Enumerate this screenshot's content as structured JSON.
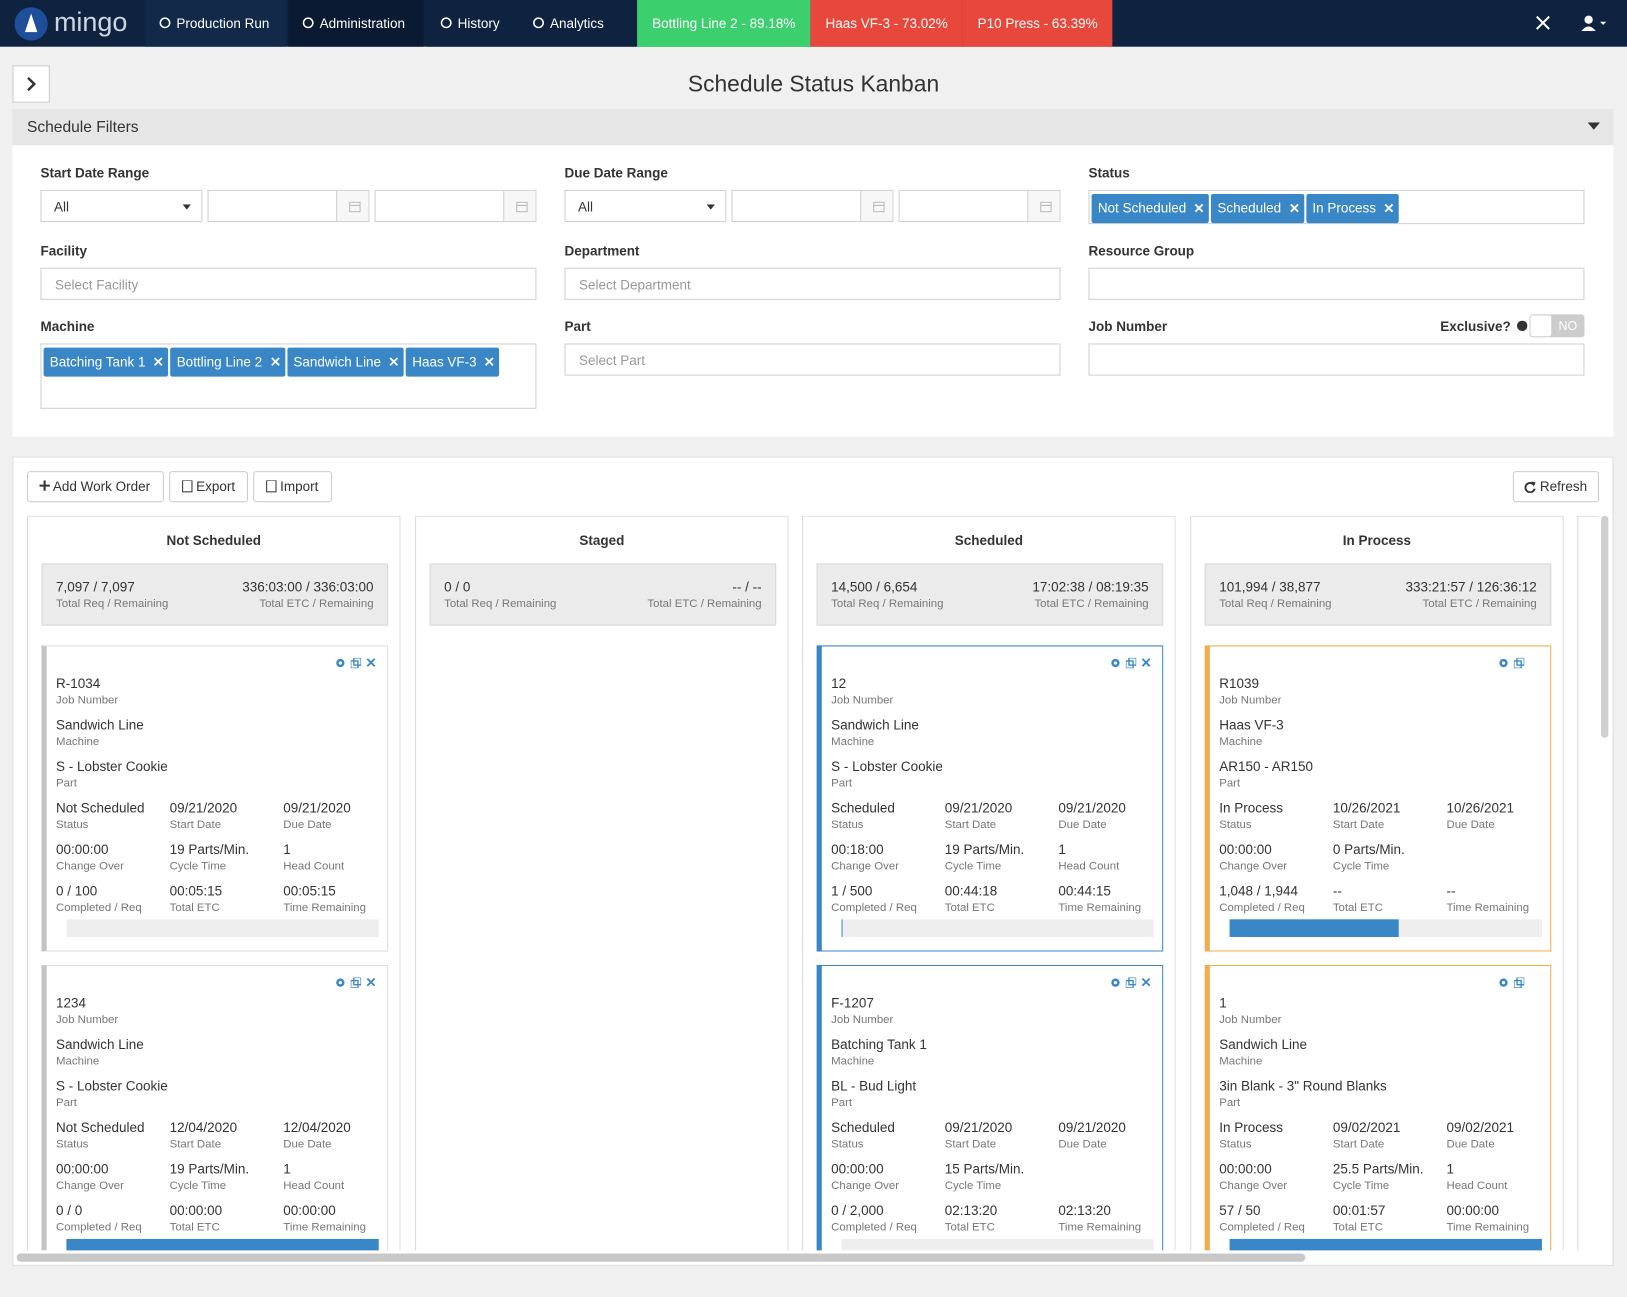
{
  "nav": {
    "brand": "mingo",
    "items": [
      "Production Run",
      "Administration",
      "History",
      "Analytics"
    ],
    "machines": [
      {
        "label": "Bottling Line 2 - 89.18%",
        "color": "#3ccf6e"
      },
      {
        "label": "Haas VF-3 - 73.02%",
        "color": "#e8483b"
      },
      {
        "label": "P10 Press - 63.39%",
        "color": "#e8483b"
      }
    ]
  },
  "title": "Schedule Status Kanban",
  "filters": {
    "heading": "Schedule Filters",
    "fields": [
      {
        "label": "Start Date Range",
        "kind": "daterange",
        "value": "All"
      },
      {
        "label": "Due Date Range",
        "kind": "daterange",
        "value": "All"
      },
      {
        "label": "Status",
        "kind": "tags",
        "tags": [
          "Not Scheduled",
          "Scheduled",
          "In Process"
        ]
      },
      {
        "label": "Facility",
        "kind": "input",
        "placeholder": "Select Facility"
      },
      {
        "label": "Department",
        "kind": "input",
        "placeholder": "Select Department"
      },
      {
        "label": "Resource Group",
        "kind": "input"
      },
      {
        "label": "Machine",
        "kind": "tags",
        "tags": [
          "Batching Tank 1",
          "Bottling Line 2",
          "Sandwich Line",
          "Haas VF-3"
        ]
      },
      {
        "label": "Part",
        "kind": "input",
        "placeholder": "Select Part"
      },
      {
        "label": "Job Number",
        "kind": "input",
        "extra_label": "Exclusive?",
        "toggle": "NO"
      }
    ]
  },
  "toolbar": {
    "buttons": [
      "Add Work Order",
      "Export",
      "Import"
    ],
    "refresh": "Refresh"
  },
  "summary_labels": [
    "Total Req / Remaining",
    "Total ETC / Remaining"
  ],
  "field_labels": [
    "Job Number",
    "Machine",
    "Part",
    "Status",
    "Start Date",
    "Due Date",
    "Change Over",
    "Cycle Time",
    "Head Count",
    "Completed / Req",
    "Total ETC",
    "Time Remaining"
  ],
  "columns": [
    {
      "title": "Not Scheduled",
      "req": "7,097 / 7,097",
      "etc": "336:03:00 / 336:03:00",
      "cards": [
        {
          "accent": "#c4c4c4",
          "removable": true,
          "job": "R-1034",
          "machine": "Sandwich Line",
          "part": "S - Lobster Cookie",
          "grid": [
            [
              "Not Scheduled",
              "09/21/2020",
              "09/21/2020"
            ],
            [
              "00:00:00",
              "19 Parts/Min.",
              "1"
            ],
            [
              "0 / 100",
              "00:05:15",
              "00:05:15"
            ]
          ],
          "progress": 0
        },
        {
          "accent": "#c4c4c4",
          "removable": true,
          "job": "1234",
          "machine": "Sandwich Line",
          "part": "S - Lobster Cookie",
          "grid": [
            [
              "Not Scheduled",
              "12/04/2020",
              "12/04/2020"
            ],
            [
              "00:00:00",
              "19 Parts/Min.",
              "1"
            ],
            [
              "0 / 0",
              "00:00:00",
              "00:00:00"
            ]
          ],
          "progress": 100
        }
      ]
    },
    {
      "title": "Staged",
      "req": "0 / 0",
      "etc": "-- / --",
      "cards": []
    },
    {
      "title": "Scheduled",
      "req": "14,500 / 6,654",
      "etc": "17:02:38 / 08:19:35",
      "cards": [
        {
          "accent": "#3a87c8",
          "removable": true,
          "job": "12",
          "machine": "Sandwich Line",
          "part": "S - Lobster Cookie",
          "grid": [
            [
              "Scheduled",
              "09/21/2020",
              "09/21/2020"
            ],
            [
              "00:18:00",
              "19 Parts/Min.",
              "1"
            ],
            [
              "1 / 500",
              "00:44:18",
              "00:44:15"
            ]
          ],
          "progress": 0.2
        },
        {
          "accent": "#3a87c8",
          "removable": true,
          "job": "F-1207",
          "machine": "Batching Tank 1",
          "part": "BL - Bud Light",
          "grid": [
            [
              "Scheduled",
              "09/21/2020",
              "09/21/2020"
            ],
            [
              "00:00:00",
              "15 Parts/Min.",
              null
            ],
            [
              "0 / 2,000",
              "02:13:20",
              "02:13:20"
            ]
          ],
          "progress": 0
        }
      ]
    },
    {
      "title": "In Process",
      "req": "101,994 / 38,877",
      "etc": "333:21:57 / 126:36:12",
      "cards": [
        {
          "accent": "#f0ad4e",
          "removable": false,
          "job": "R1039",
          "machine": "Haas VF-3",
          "part": "AR150 - AR150",
          "grid": [
            [
              "In Process",
              "10/26/2021",
              "10/26/2021"
            ],
            [
              "00:00:00",
              "0 Parts/Min.",
              null
            ],
            [
              "1,048 / 1,944",
              "--",
              "--"
            ]
          ],
          "progress": 54
        },
        {
          "accent": "#f0ad4e",
          "removable": false,
          "job": "1",
          "machine": "Sandwich Line",
          "part": "3in Blank - 3\" Round Blanks",
          "grid": [
            [
              "In Process",
              "09/02/2021",
              "09/02/2021"
            ],
            [
              "00:00:00",
              "25.5 Parts/Min.",
              "1"
            ],
            [
              "57 / 50",
              "00:01:57",
              "00:00:00"
            ]
          ],
          "progress": 100
        }
      ]
    }
  ]
}
